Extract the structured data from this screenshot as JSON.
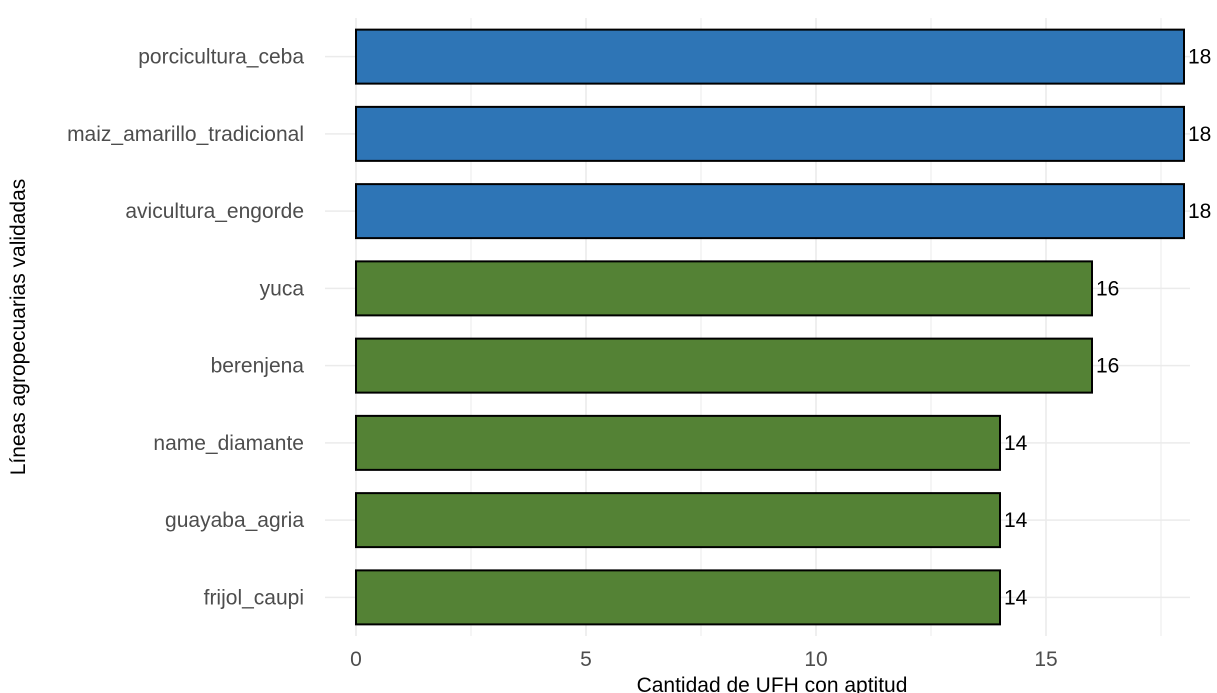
{
  "chart_data": {
    "type": "bar",
    "orientation": "horizontal",
    "categories": [
      "porcicultura_ceba",
      "maiz_amarillo_tradicional",
      "avicultura_engorde",
      "yuca",
      "berenjena",
      "name_diamante",
      "guayaba_agria",
      "frijol_caupi"
    ],
    "values": [
      18,
      18,
      18,
      16,
      16,
      14,
      14,
      14
    ],
    "bar_colors": [
      "#2e75b6",
      "#2e75b6",
      "#2e75b6",
      "#548235",
      "#548235",
      "#548235",
      "#548235",
      "#548235"
    ],
    "data_labels": [
      "18",
      "18",
      "18",
      "16",
      "16",
      "14",
      "14",
      "14"
    ],
    "xlabel": "Cantidad de UFH con aptitud",
    "ylabel": "Líneas agropecuarias validadas",
    "xlim": [
      0,
      18.5
    ],
    "x_ticks": [
      0,
      5,
      10,
      15
    ],
    "x_tick_labels": [
      "0",
      "5",
      "10",
      "15"
    ],
    "grid": true,
    "bar_outline_color": "#000000",
    "grid_color": "#ebebeb"
  }
}
